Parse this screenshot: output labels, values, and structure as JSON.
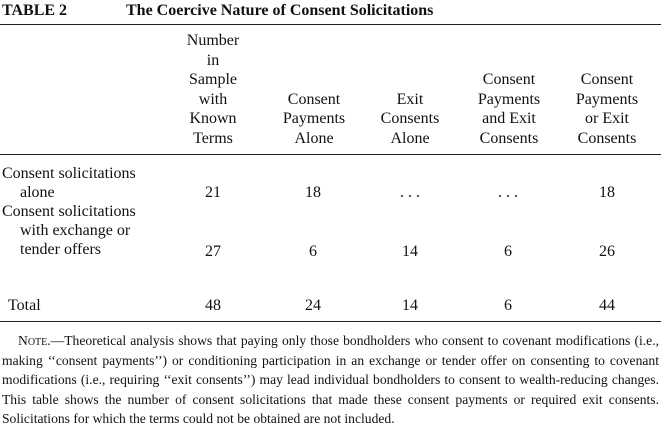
{
  "caption": {
    "label": "TABLE 2",
    "title": "The Coercive Nature of Consent Solicitations"
  },
  "columns": [
    {
      "lines": [
        "Number",
        "in",
        "Sample",
        "with",
        "Known",
        "Terms"
      ]
    },
    {
      "lines": [
        "Consent",
        "Payments",
        "Alone"
      ]
    },
    {
      "lines": [
        "Exit",
        "Consents",
        "Alone"
      ]
    },
    {
      "lines": [
        "Consent",
        "Payments",
        "and Exit",
        "Consents"
      ]
    },
    {
      "lines": [
        "Consent",
        "Payments",
        "or Exit",
        "Consents"
      ]
    }
  ],
  "rows": [
    {
      "label_lines": [
        "Consent solicitations",
        "alone"
      ],
      "values": [
        "21",
        "18",
        ". . .",
        ". . .",
        "18"
      ]
    },
    {
      "label_lines": [
        "Consent solicitations",
        "with exchange or",
        "tender offers"
      ],
      "values": [
        "27",
        "6",
        "14",
        "6",
        "26"
      ]
    },
    {
      "label_lines": [
        "Total"
      ],
      "values": [
        "48",
        "24",
        "14",
        "6",
        "44"
      ]
    }
  ],
  "note": {
    "head": "Note.",
    "body": "—Theoretical analysis shows that paying only those bondholders who consent to covenant modifications (i.e., making ‘‘consent payments’’) or conditioning participation in an exchange or tender offer on consenting to covenant modifications (i.e., requiring ‘‘exit consents’’) may lead individual bondholders to consent to wealth-reducing changes. This table shows the number of consent solicitations that made these consent payments or required exit consents. Solicitations for which the terms could not be obtained are not included."
  }
}
